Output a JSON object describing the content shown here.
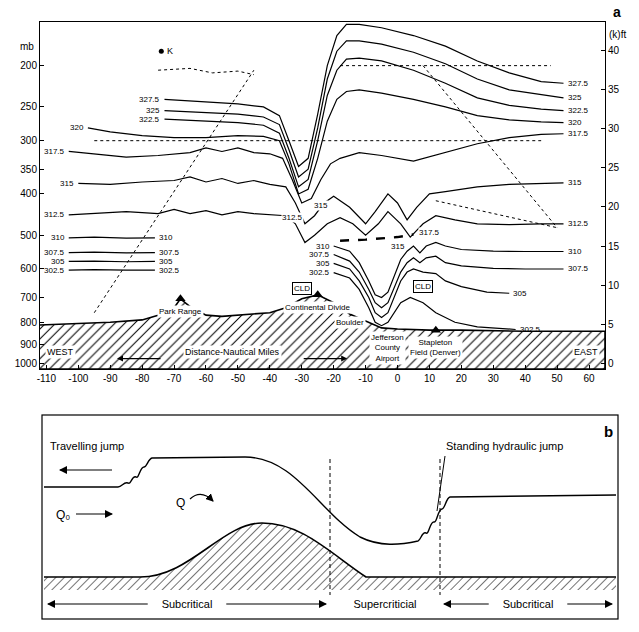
{
  "chart_data": {
    "type": "line",
    "panel_label": "a",
    "ylabel": "mb",
    "y2label": "(k)ft",
    "xlabel": "Distance-Nautical Miles",
    "direction_labels": [
      "WEST",
      "EAST"
    ],
    "log": "y",
    "grid": false,
    "xlim": [
      -112,
      65
    ],
    "xticks": [
      -110,
      -100,
      -90,
      -80,
      -70,
      -60,
      -50,
      -40,
      -30,
      -20,
      -10,
      0,
      10,
      20,
      30,
      40,
      50,
      60
    ],
    "ylim": [
      1030,
      158
    ],
    "yticks": [
      200,
      250,
      300,
      350,
      400,
      500,
      600,
      700,
      800,
      900,
      1000
    ],
    "y2lim": [
      -0.7,
      43.6
    ],
    "y2ticks": [
      0,
      5,
      10,
      15,
      20,
      25,
      30,
      35,
      40
    ],
    "series": [
      {
        "label": "327.5",
        "x": [
          -73,
          -60,
          -50,
          -42,
          -37,
          -34,
          -31,
          -28,
          -25,
          -22,
          -19,
          -16,
          -12,
          -5,
          5,
          15,
          25,
          35,
          45,
          52
        ],
        "values": [
          240,
          243,
          246,
          250,
          262,
          300,
          345,
          330,
          260,
          200,
          170,
          160,
          160,
          163,
          170,
          180,
          195,
          208,
          218,
          220
        ]
      },
      {
        "label": "325",
        "x": [
          -73,
          -60,
          -50,
          -42,
          -37,
          -34,
          -31,
          -28,
          -25,
          -22,
          -19,
          -16,
          -12,
          -5,
          5,
          15,
          25,
          35,
          45,
          52
        ],
        "values": [
          255,
          258,
          260,
          264,
          275,
          315,
          365,
          350,
          280,
          215,
          185,
          175,
          175,
          178,
          186,
          198,
          215,
          228,
          234,
          238
        ]
      },
      {
        "label": "322.5",
        "x": [
          -73,
          -60,
          -50,
          -42,
          -37,
          -34,
          -31,
          -28,
          -25,
          -22,
          -19,
          -16,
          -12,
          -5,
          5,
          15,
          25,
          35,
          45,
          52
        ],
        "values": [
          267,
          270,
          272,
          276,
          288,
          330,
          385,
          370,
          300,
          235,
          205,
          193,
          192,
          195,
          205,
          220,
          238,
          248,
          253,
          255
        ]
      },
      {
        "label": "320",
        "x": [
          -97,
          -90,
          -80,
          -70,
          -60,
          -50,
          -42,
          -37,
          -34,
          -31,
          -28,
          -25,
          -22,
          -19,
          -16,
          -12,
          -5,
          5,
          15,
          25,
          35,
          45,
          52
        ],
        "values": [
          280,
          286,
          292,
          295,
          295,
          292,
          293,
          300,
          340,
          400,
          390,
          330,
          270,
          240,
          230,
          228,
          232,
          240,
          250,
          262,
          268,
          271,
          272
        ]
      },
      {
        "label": "317.5",
        "x": [
          -103,
          -95,
          -85,
          -75,
          -65,
          -60,
          -55,
          -50,
          -45,
          -40,
          -36,
          -33,
          -30,
          -27,
          -24,
          -21,
          -18,
          -12,
          -5,
          5,
          15,
          25,
          35,
          45,
          52
        ],
        "values": [
          318,
          322,
          328,
          325,
          320,
          312,
          318,
          312,
          320,
          322,
          330,
          370,
          420,
          410,
          370,
          340,
          330,
          320,
          325,
          335,
          320,
          305,
          295,
          290,
          289
        ]
      },
      {
        "label": "315",
        "x": [
          -100,
          -90,
          -80,
          -70,
          -65,
          -60,
          -55,
          -50,
          -45,
          -40,
          -35,
          -32,
          -29,
          -26,
          -23,
          -20,
          -15,
          -10,
          -7,
          -3,
          0,
          3,
          6,
          10,
          15,
          25,
          35,
          45,
          52
        ],
        "values": [
          378,
          380,
          375,
          372,
          365,
          375,
          368,
          378,
          372,
          380,
          385,
          420,
          470,
          450,
          420,
          405,
          430,
          470,
          440,
          400,
          420,
          460,
          430,
          400,
          395,
          385,
          380,
          378,
          377
        ]
      },
      {
        "label": "312.5",
        "x": [
          -103,
          -95,
          -85,
          -75,
          -70,
          -65,
          -60,
          -55,
          -50,
          -45,
          -40,
          -35,
          -32,
          -29,
          -26,
          -22,
          -18,
          -14,
          -10,
          -6,
          -3,
          1,
          4,
          8,
          12,
          18,
          25,
          35,
          45,
          52
        ],
        "values": [
          448,
          445,
          440,
          445,
          435,
          445,
          438,
          448,
          440,
          445,
          448,
          450,
          470,
          520,
          500,
          470,
          455,
          470,
          500,
          470,
          440,
          470,
          505,
          470,
          450,
          460,
          470,
          472,
          470,
          470
        ]
      },
      {
        "label": "310",
        "x": [
          -103,
          -95,
          -85,
          -76,
          null,
          -20,
          -15,
          -12,
          -9,
          -7,
          -5,
          -3,
          -1,
          1,
          3,
          5,
          7,
          9,
          12,
          15,
          20,
          30,
          40,
          52
        ],
        "values": [
          507,
          505,
          508,
          507,
          null,
          530,
          545,
          580,
          640,
          690,
          700,
          680,
          620,
          570,
          545,
          530,
          550,
          530,
          520,
          530,
          540,
          545,
          546,
          546
        ]
      },
      {
        "label": "307.5",
        "x": [
          -103,
          -95,
          -85,
          -76,
          null,
          -20,
          -15,
          -12,
          -9,
          -7,
          -5,
          -3,
          -1,
          1,
          3,
          5,
          7,
          9,
          12,
          15,
          20,
          30,
          40,
          52
        ],
        "values": [
          549,
          548,
          550,
          549,
          null,
          555,
          575,
          610,
          670,
          720,
          740,
          720,
          660,
          610,
          580,
          565,
          580,
          565,
          560,
          580,
          590,
          598,
          600,
          600
        ]
      },
      {
        "label": "305",
        "x": [
          -103,
          -95,
          -85,
          -76,
          null,
          -20,
          -15,
          -12,
          -9,
          -7,
          -5,
          -3,
          -1,
          1,
          3,
          5,
          8,
          12,
          15,
          20,
          28,
          35
        ],
        "values": [
          576,
          575,
          577,
          576,
          null,
          582,
          600,
          640,
          700,
          760,
          780,
          760,
          700,
          640,
          610,
          600,
          610,
          615,
          640,
          660,
          680,
          684
        ]
      },
      {
        "label": "302.5",
        "x": [
          -103,
          -95,
          -85,
          -76,
          null,
          -20,
          -15,
          -12,
          -9,
          -7,
          -5,
          -3,
          -1,
          1,
          4,
          8,
          12,
          18,
          25,
          32,
          37
        ],
        "values": [
          604,
          602,
          604,
          604,
          null,
          612,
          630,
          670,
          740,
          800,
          815,
          800,
          760,
          720,
          700,
          720,
          760,
          800,
          820,
          828,
          832
        ]
      }
    ],
    "labels": [
      {
        "text": "312.5",
        "x": -33,
        "value": 455
      },
      {
        "text": "315",
        "x": -24,
        "value": 425
      },
      {
        "text": "315",
        "x": 0,
        "value": 530
      },
      {
        "text": "317.5",
        "x": 10,
        "value": 492
      }
    ],
    "jump_line": {
      "x": [
        -18,
        -10,
        0,
        5
      ],
      "values": [
        515,
        512,
        505,
        498
      ],
      "line_style": "dash"
    },
    "flight_tracks": [
      {
        "x": [
          -95,
          -45
        ],
        "values": [
          760,
          205
        ],
        "line_style": "dot"
      },
      {
        "x": [
          -95,
          45
        ],
        "values": [
          300,
          300
        ],
        "line_style": "dot"
      },
      {
        "x": [
          -75,
          -65,
          -58,
          -50,
          -45
        ],
        "values": [
          205,
          203,
          208,
          206,
          210
        ],
        "line_style": "dot"
      },
      {
        "x": [
          -18,
          48
        ],
        "values": [
          200,
          200
        ],
        "line_style": "dot"
      },
      {
        "x": [
          8,
          50
        ],
        "values": [
          200,
          480
        ],
        "line_style": "dot"
      },
      {
        "x": [
          12,
          50
        ],
        "values": [
          415,
          480
        ],
        "line_style": "dot"
      }
    ],
    "clouds": [
      {
        "text": "CLD",
        "x": -30,
        "value": 665
      },
      {
        "text": "CLD",
        "x": 8,
        "value": 660
      }
    ],
    "terrain": {
      "x": [
        -112,
        -100,
        -90,
        -80,
        -75,
        -70,
        -68,
        -65,
        -60,
        -55,
        -50,
        -45,
        -40,
        -35,
        -30,
        -25,
        -20,
        -15,
        -10,
        -7,
        -5,
        0,
        10,
        20,
        40,
        65
      ],
      "values": [
        812,
        805,
        800,
        790,
        770,
        740,
        705,
        735,
        770,
        775,
        770,
        765,
        760,
        740,
        705,
        690,
        720,
        765,
        795,
        812,
        825,
        830,
        835,
        835,
        840,
        840
      ]
    },
    "sites": [
      {
        "label": "Park Range",
        "x": -68,
        "value": 705,
        "marker": "triangle-up"
      },
      {
        "label": "Continental Divide",
        "x": -25,
        "value": 690,
        "marker": "triangle-up"
      },
      {
        "label": "Boulder",
        "x": -15,
        "value": 765,
        "marker": "none"
      },
      {
        "label": "Jefferson County Airport",
        "x": -3,
        "value": 828,
        "marker": "none"
      },
      {
        "label": "Stapleton Field (Denver)",
        "x": 12,
        "value": 835,
        "marker": "triangle-up"
      },
      {
        "label": "K",
        "x": -74,
        "value": 185,
        "marker": "circle"
      }
    ]
  },
  "diagram": {
    "panel_label": "b",
    "travelling_jump": "Travelling jump",
    "standing_jump": "Standing hydraulic jump",
    "upstream_flow": "Q₀",
    "ridge_flow": "Q",
    "regimes": [
      "Subcritical",
      "Supercriticial",
      "Subcritical"
    ]
  }
}
